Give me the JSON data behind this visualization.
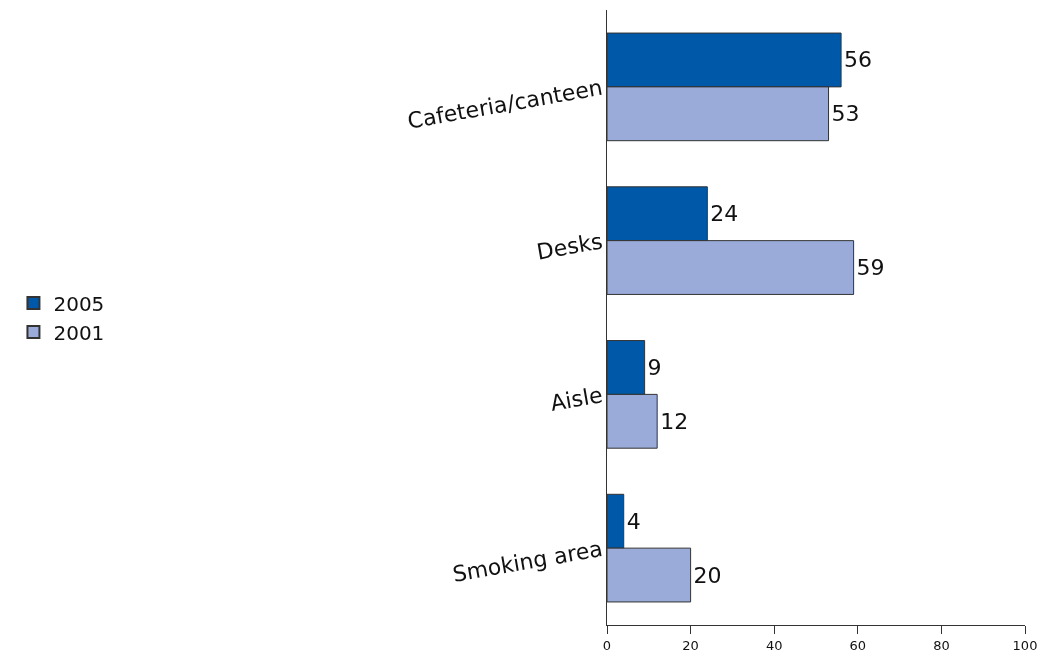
{
  "chart_data": {
    "type": "bar",
    "orientation": "horizontal",
    "categories": [
      "Cafeteria/canteen",
      "Desks",
      "Aisle",
      "Smoking area"
    ],
    "series": [
      {
        "name": "2005",
        "color": "#0058a8",
        "values": [
          56,
          24,
          9,
          4
        ]
      },
      {
        "name": "2001",
        "color": "#9aabd9",
        "values": [
          53,
          59,
          12,
          20
        ]
      }
    ],
    "xlim": [
      0,
      100
    ],
    "xticks": [
      0,
      20,
      40,
      60,
      80,
      100
    ],
    "data_labels": true,
    "legend": "left",
    "grid": false
  }
}
